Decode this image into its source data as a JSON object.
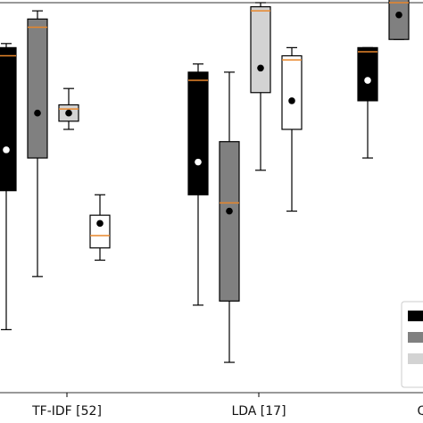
{
  "chart_data": {
    "type": "box",
    "grid": false,
    "legend_position": "bottom-right",
    "ylim": [
      0,
      100
    ],
    "categories": [
      "TF-IDF [52]",
      "LDA [17]",
      "Qu-"
    ],
    "series": [
      {
        "color": "#000000",
        "boxes": [
          {
            "min": 20,
            "q1": 54,
            "median": 87,
            "q3": 89,
            "max": 90,
            "mean": 64
          },
          {
            "min": 26,
            "q1": 53,
            "median": 81,
            "q3": 83,
            "max": 85,
            "mean": 61
          },
          {
            "min": 62,
            "q1": 76,
            "median": 88,
            "q3": 89,
            "max": 89,
            "mean": 81
          }
        ]
      },
      {
        "color": "#808080",
        "boxes": [
          {
            "min": 33,
            "q1": 62,
            "median": 94,
            "q3": 96,
            "max": 98,
            "mean": 73
          },
          {
            "min": 12,
            "q1": 27,
            "median": 51,
            "q3": 66,
            "max": 83,
            "mean": 49
          },
          {
            "min": 91,
            "q1": 91,
            "median": 100,
            "q3": 101,
            "max": 103,
            "mean": 97
          }
        ]
      },
      {
        "color": "#d3d3d3",
        "boxes": [
          {
            "min": 69,
            "q1": 71,
            "median": 74,
            "q3": 75,
            "max": 79,
            "mean": 73
          },
          {
            "min": 59,
            "q1": 78,
            "median": 98,
            "q3": 99,
            "max": 100,
            "mean": 84
          },
          {
            "min": 0,
            "q1": 0,
            "median": 0,
            "q3": 0,
            "max": 0,
            "mean": 0,
            "hidden": true
          }
        ]
      },
      {
        "color": "#ffffff",
        "boxes": [
          {
            "min": 37,
            "q1": 40,
            "median": 43,
            "q3": 48,
            "max": 53,
            "mean": 46
          },
          {
            "min": 49,
            "q1": 69,
            "median": 86,
            "q3": 87,
            "max": 89,
            "mean": 76
          },
          {
            "min": 0,
            "q1": 0,
            "median": 0,
            "q3": 0,
            "max": 0,
            "mean": 0,
            "hidden": true
          }
        ]
      }
    ],
    "colors": {
      "median": "#e8862a",
      "mean": "#000000",
      "frame": "#333333"
    }
  }
}
